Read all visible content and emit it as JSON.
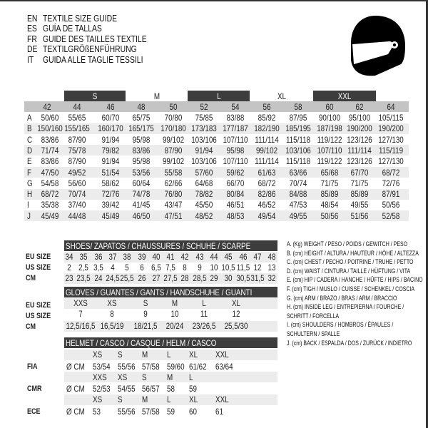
{
  "titles": [
    {
      "lang": "EN",
      "text": "TEXTILE SIZE GUIDE"
    },
    {
      "lang": "ES",
      "text": "GUÍA DE TALLAS"
    },
    {
      "lang": "FR",
      "text": "GUIDE DES TAILLES TEXTILE"
    },
    {
      "lang": "DE",
      "text": "TEXTILGRÖßENFÜHRUNG"
    },
    {
      "lang": "IT",
      "text": "GUIDA ALLE TAGLIE TESSILI"
    }
  ],
  "icon": "helmet-icon",
  "textile": {
    "size_groups": [
      {
        "label": "S",
        "style": "dark"
      },
      {
        "label": "M",
        "style": "light"
      },
      {
        "label": "L",
        "style": "dark"
      },
      {
        "label": "XL",
        "style": "light"
      },
      {
        "label": "XXL",
        "style": "dark"
      }
    ],
    "columns": [
      "42",
      "44",
      "46",
      "48",
      "50",
      "52",
      "54",
      "56",
      "58",
      "60",
      "62",
      "64"
    ],
    "rows": [
      {
        "key": "A",
        "values": [
          "50/60",
          "55/65",
          "60/70",
          "65/75",
          "70/80",
          "75/85",
          "83/88",
          "85/92",
          "87/95",
          "90/100",
          "95/100",
          "105/115"
        ]
      },
      {
        "key": "B",
        "values": [
          "150/160",
          "155/165",
          "160/170",
          "165/175",
          "170/180",
          "173/183",
          "177/187",
          "182/190",
          "185/195",
          "187/198",
          "190/200",
          "190/200"
        ]
      },
      {
        "key": "C",
        "values": [
          "83/86",
          "87/90",
          "91/94",
          "95/98",
          "99/102",
          "103/106",
          "107/110",
          "111/114",
          "115/118",
          "119/122",
          "123/126",
          "127/130"
        ]
      },
      {
        "key": "D",
        "values": [
          "71/74",
          "75/78",
          "79/82",
          "83/86",
          "87/90",
          "91/94",
          "95/98",
          "99/102",
          "103/106",
          "107/110",
          "111/114",
          "115/119"
        ]
      },
      {
        "key": "E",
        "values": [
          "83/86",
          "87/90",
          "91/94",
          "95/98",
          "99/102",
          "103/106",
          "107/110",
          "111/114",
          "115/118",
          "119/122",
          "123/126",
          "127/130"
        ]
      },
      {
        "key": "F",
        "values": [
          "47/50",
          "49/52",
          "51/54",
          "53/56",
          "55/58",
          "57/60",
          "59/62",
          "61/63",
          "63/66",
          "65/68",
          "67/70",
          "68/72"
        ]
      },
      {
        "key": "G",
        "values": [
          "54/58",
          "56/60",
          "58/62",
          "60/64",
          "62/66",
          "64/68",
          "66/70",
          "68/72",
          "70/74",
          "71/75",
          "71/75",
          "72/76"
        ]
      },
      {
        "key": "H",
        "values": [
          "68/72",
          "70/74",
          "72/76",
          "74/78",
          "76/80",
          "78/82",
          "80/84",
          "82/86",
          "84/88",
          "85/89",
          "85/89",
          "87/91"
        ]
      },
      {
        "key": "I",
        "values": [
          "35/38",
          "37/40",
          "39/42",
          "41/45",
          "43/47",
          "45/50",
          "46/51",
          "46/52",
          "47/53",
          "48/54",
          "49/55",
          "50/56"
        ]
      },
      {
        "key": "J",
        "values": [
          "45/49",
          "44/48",
          "45/49",
          "46/50",
          "47/51",
          "48/52",
          "48/53",
          "49/54",
          "49/55",
          "50/56",
          "51/56",
          "52/58"
        ]
      }
    ]
  },
  "shoes": {
    "title": "SHOES/ ZAPATOS / CHAUSSURES / SCHUHE / SCARPE",
    "rows": [
      {
        "label": "EU SIZE",
        "values": [
          "34",
          "35",
          "36",
          "37",
          "38",
          "39",
          "40",
          "41",
          "42",
          "43",
          "44",
          "45",
          "46",
          "47",
          "48"
        ]
      },
      {
        "label": "US SIZE",
        "values": [
          "2",
          "2,5",
          "3,5",
          "4",
          "5",
          "6",
          "6,5",
          "7,5",
          "8",
          "9",
          "10",
          "10,5",
          "11,5",
          "12",
          "13"
        ]
      },
      {
        "label": "CM",
        "values": [
          "23",
          "23,5",
          "24",
          "24,5",
          "25,5",
          "26",
          "27",
          "27,5",
          "28",
          "28,5",
          "29",
          "30",
          "30,5",
          "31,5",
          "32"
        ]
      }
    ]
  },
  "gloves": {
    "title": "GLOVES / GUANTES / GANTS / HANDSCHUHE / GUANTI",
    "rows": [
      {
        "label": "EU SIZE",
        "values": [
          "XXS",
          "XS",
          "S",
          "M",
          "L",
          "XL"
        ]
      },
      {
        "label": "US SIZE",
        "values": [
          "7",
          "8",
          "9",
          "10",
          "11",
          "12"
        ]
      },
      {
        "label": "CM",
        "values": [
          "12,5/16,5",
          "16,5/19",
          "18/21,5",
          "20/24",
          "23/26,5",
          "25,5/30"
        ]
      }
    ]
  },
  "helmet": {
    "title": "HELMET / CASCO / CASQUE / HELM / CASCO",
    "unit": "Ø CM",
    "standards": [
      {
        "label": "FIA",
        "sizes": [
          "XS",
          "S",
          "M",
          "L",
          "XL",
          "XXL"
        ],
        "values": [
          "53/54",
          "55/56",
          "57/58",
          "59/60",
          "61/62",
          "63/64"
        ]
      },
      {
        "label": "CMR",
        "sizes": [
          "XXS",
          "XS",
          "S",
          "M",
          "L"
        ],
        "values": [
          "52/53",
          "54/55",
          "56/57",
          "58",
          "59"
        ]
      },
      {
        "label": "ECE",
        "sizes": [
          "XS",
          "S",
          "M",
          "L",
          "XL",
          "XXL"
        ],
        "values": [
          "53",
          "55/56",
          "57/58",
          "59",
          "60",
          "61"
        ]
      }
    ]
  },
  "legend": [
    "A. (Kg) WEIGHT / PESO / POIDS / GEWITCH / PESO",
    "B. (cm) HEIGHT / ALTURA / HAUTEUR / HÖHE / ALTEZZA",
    "C. (cm) CHEST / PECHO / POITRINE / TRUHE / PETTO",
    "D. (cm) WAIST / CINTURA / TAILLE / HÜFTUNG / VITA",
    "E. (cm) HIP / CADERA / HANCHE / HÜFTE / HIPS /  BACINO",
    "F.  (cm) TIGH / MUSLO / CUISSE / SCHENKEL / COSCIA",
    "G. (cm) ARM  / BRAZO / BRAS / ARM / BRACCIO",
    "H. (cm) INSIDE LEG / ENTREPIERNA / FOURCHE /",
    "SCHRITT / FORCELLA",
    "I.  (cm) SHOULDERS / HOMBROS / ÉPAULES /",
    "SCHULTERN / SPALLE",
    "J. (cm) BACK / ESPALDA / DOS / ZURÜCK / INDIETRO"
  ]
}
